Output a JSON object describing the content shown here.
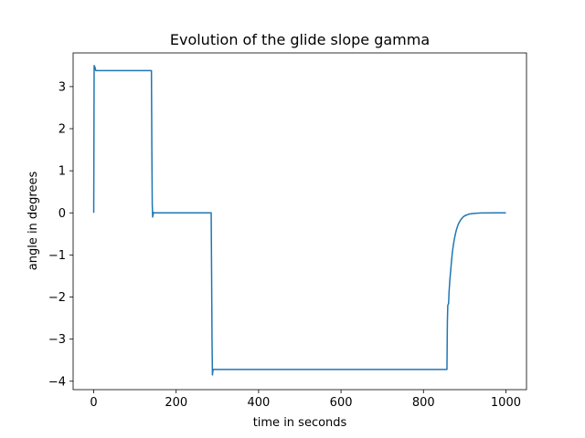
{
  "chart_data": {
    "type": "line",
    "title": "Evolution of the glide slope gamma",
    "xlabel": "time in seconds",
    "ylabel": "angle in degrees",
    "xlim": [
      -50,
      1050
    ],
    "ylim": [
      -4.2,
      3.8
    ],
    "xticks": [
      0,
      200,
      400,
      600,
      800,
      1000
    ],
    "xtick_labels": [
      "0",
      "200",
      "400",
      "600",
      "800",
      "1000"
    ],
    "yticks": [
      3,
      2,
      1,
      0,
      -1,
      -2,
      -3,
      -4
    ],
    "ytick_labels": [
      "3",
      "2",
      "1",
      "0",
      "−1",
      "−2",
      "−3",
      "−4"
    ],
    "grid": false,
    "line_color": "#1f77b4",
    "series": [
      {
        "x": [
          0,
          1,
          3,
          5,
          8,
          50,
          100,
          140,
          141,
          142,
          143,
          145,
          146,
          150,
          200,
          250,
          285,
          286,
          287,
          288,
          289,
          290,
          291,
          300,
          400,
          500,
          600,
          700,
          800,
          857,
          858,
          859,
          861,
          862,
          864,
          866,
          868,
          870,
          872,
          875,
          878,
          880,
          883,
          885,
          890,
          895,
          900,
          910,
          920,
          930,
          940,
          950,
          975,
          1000
        ],
        "y": [
          0,
          3.5,
          3.46,
          3.38,
          3.38,
          3.38,
          3.38,
          3.38,
          1.5,
          0.2,
          -0.1,
          0.01,
          0.0,
          0,
          0,
          0,
          0,
          -1.5,
          -3.0,
          -3.85,
          -3.76,
          -3.72,
          -3.72,
          -3.72,
          -3.72,
          -3.72,
          -3.72,
          -3.72,
          -3.72,
          -3.72,
          -2.6,
          -2.2,
          -2.15,
          -1.9,
          -1.6,
          -1.38,
          -1.15,
          -0.95,
          -0.8,
          -0.62,
          -0.48,
          -0.4,
          -0.31,
          -0.26,
          -0.17,
          -0.11,
          -0.07,
          -0.03,
          -0.015,
          -0.007,
          -0.003,
          -0.001,
          0,
          0
        ]
      }
    ]
  }
}
